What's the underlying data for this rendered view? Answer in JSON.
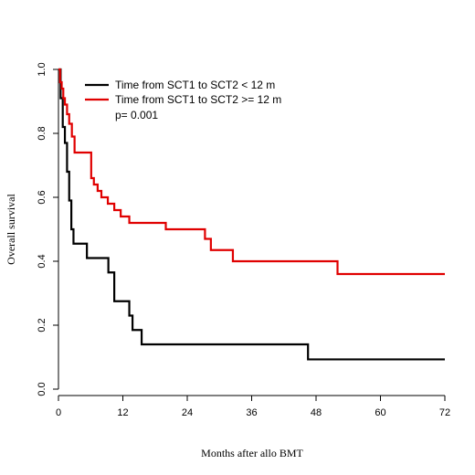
{
  "chart_data": {
    "type": "line",
    "step": true,
    "xlabel": "Months after allo BMT",
    "ylabel": "Overall survival",
    "xlim": [
      0,
      72
    ],
    "ylim": [
      0.0,
      1.0
    ],
    "xticks": [
      0,
      12,
      24,
      36,
      48,
      60,
      72
    ],
    "xtick_labels": [
      "0",
      "12",
      "24",
      "36",
      "48",
      "60",
      "72"
    ],
    "yticks": [
      0.0,
      0.2,
      0.4,
      0.6,
      0.8,
      1.0
    ],
    "ytick_labels": [
      "0.0",
      "0.2",
      "0.4",
      "0.6",
      "0.8",
      "1.0"
    ],
    "grid": false,
    "legend_position": "top-left",
    "annotation": "p= 0.001",
    "series": [
      {
        "name": "Time from SCT1 to SCT2 < 12 m",
        "color": "#000000",
        "x": [
          0,
          0.4,
          0.8,
          1.2,
          1.6,
          2.0,
          2.4,
          2.8,
          5.3,
          9.3,
          10.4,
          13.2,
          13.8,
          15.5,
          46.5,
          72
        ],
        "y": [
          1.0,
          0.91,
          0.82,
          0.77,
          0.68,
          0.59,
          0.5,
          0.455,
          0.41,
          0.365,
          0.275,
          0.23,
          0.185,
          0.14,
          0.093,
          0.093
        ]
      },
      {
        "name": "Time from SCT1 to SCT2 >= 12 m",
        "color": "#e00000",
        "x": [
          0,
          0.3,
          0.6,
          0.9,
          1.2,
          1.6,
          2.0,
          2.5,
          3.0,
          6.1,
          6.6,
          7.3,
          8.0,
          9.2,
          10.4,
          11.6,
          13.2,
          20.0,
          27.3,
          28.4,
          32.5,
          52.0,
          72
        ],
        "y": [
          1.0,
          0.96,
          0.94,
          0.91,
          0.89,
          0.86,
          0.83,
          0.79,
          0.74,
          0.66,
          0.64,
          0.62,
          0.6,
          0.58,
          0.56,
          0.54,
          0.52,
          0.5,
          0.47,
          0.435,
          0.4,
          0.36,
          0.36
        ]
      }
    ]
  }
}
